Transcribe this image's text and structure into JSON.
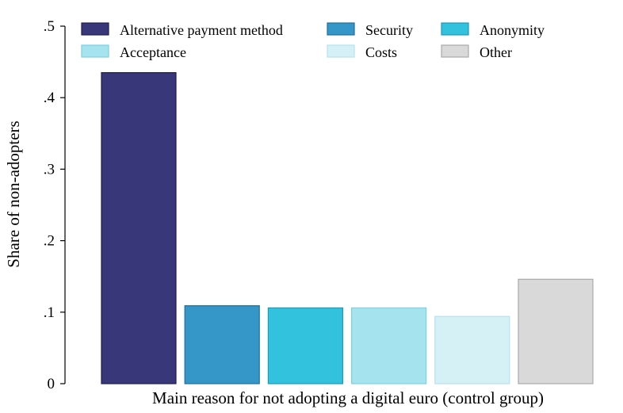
{
  "chart_data": {
    "type": "bar",
    "xlabel": "Main reason for not adopting a digital euro (control group)",
    "ylabel": "Share of non-adopters",
    "ylim": [
      0,
      0.5
    ],
    "yticks": [
      {
        "value": 0,
        "label": "0"
      },
      {
        "value": 0.1,
        "label": ".1"
      },
      {
        "value": 0.2,
        "label": ".2"
      },
      {
        "value": 0.3,
        "label": ".3"
      },
      {
        "value": 0.4,
        "label": ".4"
      },
      {
        "value": 0.5,
        "label": ".5"
      }
    ],
    "grid": false,
    "legend_position": "top",
    "series": [
      {
        "name": "Alternative payment method",
        "value": 0.435,
        "color": "#37377a",
        "stroke": "#1f1f4f"
      },
      {
        "name": "Security",
        "value": 0.109,
        "color": "#3596c8",
        "stroke": "#1f6f9e"
      },
      {
        "name": "Anonymity",
        "value": 0.106,
        "color": "#33c2de",
        "stroke": "#1c9bb6"
      },
      {
        "name": "Acceptance",
        "value": 0.106,
        "color": "#a5e3ee",
        "stroke": "#7fcfe0"
      },
      {
        "name": "Costs",
        "value": 0.094,
        "color": "#d6f1f6",
        "stroke": "#b4e2ec"
      },
      {
        "name": "Other",
        "value": 0.146,
        "color": "#d9d9d9",
        "stroke": "#a9a9a9"
      }
    ]
  }
}
